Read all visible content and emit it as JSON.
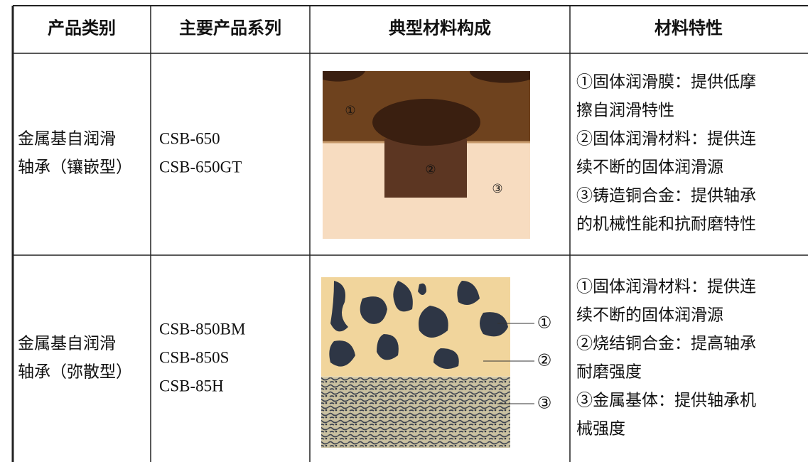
{
  "table": {
    "header": [
      "产品类别",
      "主要产品系列",
      "典型材料构成",
      "材料特性"
    ],
    "rows": [
      {
        "category": [
          "金属基自润滑",
          "轴承（镶嵌型）"
        ],
        "series": [
          "CSB-650",
          "CSB-650GT"
        ],
        "figure_labels": [
          "①",
          "②",
          "③"
        ],
        "properties": [
          "①固体润滑膜：提供低摩",
          "擦自润滑特性",
          "②固体润滑材料：提供连",
          "续不断的固体润滑源",
          "③铸造铜合金：提供轴承",
          "的机械性能和抗耐磨特性"
        ]
      },
      {
        "category": [
          "金属基自润滑",
          "轴承（弥散型）"
        ],
        "series": [
          "CSB-850BM",
          "CSB-850S",
          "CSB-85H"
        ],
        "figure_labels": [
          "①",
          "②",
          "③"
        ],
        "properties": [
          "①固体润滑材料：提供连",
          "续不断的固体润滑源",
          "②烧结铜合金：提高轴承",
          "耐磨强度",
          "③金属基体：提供轴承机",
          "械强度"
        ]
      }
    ]
  }
}
